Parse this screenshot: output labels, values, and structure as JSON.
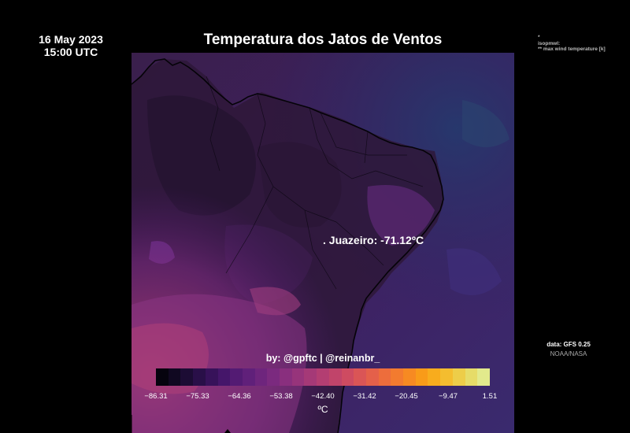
{
  "header": {
    "date": "16 May 2023",
    "time": "15:00 UTC",
    "title": "Temperatura dos Jatos de Ventos"
  },
  "legend_note": {
    "line1": "*",
    "line2": "isopmwl:",
    "line3": "** max wind temperature [k]"
  },
  "annotation": {
    "city_label": ". Juazeiro: -71.12ºC"
  },
  "credit": "by: @gpftc | @reinanbr_",
  "colorbar": {
    "tick_labels": [
      "−86.31",
      "−75.33",
      "−64.36",
      "−53.38",
      "−42.40",
      "−31.42",
      "−20.45",
      "−9.47",
      "1.51"
    ],
    "unit": "ºC",
    "colors": [
      "#06030e",
      "#100821",
      "#1c0c34",
      "#290f48",
      "#37125a",
      "#45166a",
      "#531b73",
      "#60207a",
      "#6e257d",
      "#7b2a7f",
      "#892f7e",
      "#97347b",
      "#a53977",
      "#b33e72",
      "#c1446a",
      "#ce4b61",
      "#da5556",
      "#e4604a",
      "#ed6d3c",
      "#f37b2f",
      "#f78a22",
      "#f99b19",
      "#f8ac1d",
      "#f4bd2f",
      "#edcd49",
      "#e6dc68",
      "#e2ea8c"
    ]
  },
  "source": {
    "data_label": "data: GFS 0.25",
    "org": "NOAA/NASA"
  }
}
